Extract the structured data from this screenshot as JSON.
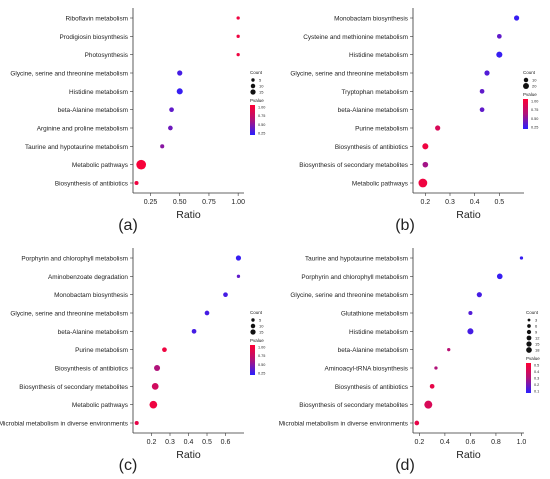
{
  "chart_data": [
    {
      "type": "scatter",
      "panel_label": "(a)",
      "xlabel": "Ratio",
      "xlim": [
        0.1,
        1.05
      ],
      "xticks": [
        "0.25",
        "0.50",
        "0.75",
        "1.00"
      ],
      "xtick_values": [
        0.25,
        0.5,
        0.75,
        1.0
      ],
      "categories": [
        "Riboflavin metabolism",
        "Prodigiosin biosynthesis",
        "Photosynthesis",
        "Glycine, serine and threonine metabolism",
        "Histidine metabolism",
        "beta-Alanine metabolism",
        "Arginine and proline metabolism",
        "Taurine and hypotaurine metabolism",
        "Metabolic pathways",
        "Biosynthesis of antibiotics"
      ],
      "ratio": [
        1.0,
        1.0,
        1.0,
        0.5,
        0.5,
        0.43,
        0.42,
        0.35,
        0.17,
        0.13
      ],
      "count": [
        1,
        1,
        1,
        4,
        6,
        3,
        3,
        2,
        19,
        2
      ],
      "pvalue": [
        0.9,
        0.9,
        0.9,
        0.1,
        0.05,
        0.2,
        0.25,
        0.35,
        0.95,
        0.9
      ],
      "legend": {
        "count_title": "Count",
        "count_levels": [
          5,
          10,
          15
        ],
        "pvalue_title": "Pvalue",
        "pvalue_ticks": [
          "1.00",
          "0.75",
          "0.50",
          "0.25"
        ]
      }
    },
    {
      "type": "scatter",
      "panel_label": "(b)",
      "xlabel": "Ratio",
      "xlim": [
        0.15,
        0.6
      ],
      "xticks": [
        "0.2",
        "0.3",
        "0.4",
        "0.5"
      ],
      "xtick_values": [
        0.2,
        0.3,
        0.4,
        0.5
      ],
      "categories": [
        "Monobactam biosynthesis",
        "Cysteine and methionine metabolism",
        "Histidine metabolism",
        "Glycine, serine and threonine metabolism",
        "Tryptophan metabolism",
        "beta-Alanine metabolism",
        "Purine metabolism",
        "Biosynthesis of antibiotics",
        "Biosynthesis of secondary metabolites",
        "Metabolic pathways"
      ],
      "ratio": [
        0.57,
        0.5,
        0.5,
        0.45,
        0.43,
        0.43,
        0.25,
        0.2,
        0.2,
        0.19
      ],
      "count": [
        4,
        3,
        6,
        4,
        3,
        3,
        4,
        6,
        5,
        15
      ],
      "pvalue": [
        0.05,
        0.2,
        0.05,
        0.15,
        0.2,
        0.2,
        0.75,
        0.9,
        0.45,
        0.9
      ],
      "legend": {
        "count_title": "Count",
        "count_levels": [
          10,
          20
        ],
        "pvalue_title": "Pvalue",
        "pvalue_ticks": [
          "1.00",
          "0.75",
          "0.50",
          "0.25"
        ]
      }
    },
    {
      "type": "scatter",
      "panel_label": "(c)",
      "xlabel": "Ratio",
      "xlim": [
        0.1,
        0.7
      ],
      "xticks": [
        "0.2",
        "0.3",
        "0.4",
        "0.5",
        "0.6"
      ],
      "xtick_values": [
        0.2,
        0.3,
        0.4,
        0.5,
        0.6
      ],
      "categories": [
        "Porphyrin and chlorophyll metabolism",
        "Aminobenzoate degradation",
        "Monobactam biosynthesis",
        "Glycine, serine and threonine metabolism",
        "beta-Alanine metabolism",
        "Purine metabolism",
        "Biosynthesis of antibiotics",
        "Biosynthesis of secondary metabolites",
        "Metabolic pathways",
        "Microbial metabolism in diverse environments"
      ],
      "ratio": [
        0.67,
        0.67,
        0.6,
        0.5,
        0.43,
        0.27,
        0.23,
        0.22,
        0.21,
        0.12
      ],
      "count": [
        4,
        1,
        3,
        3,
        3,
        3,
        6,
        8,
        11,
        2
      ],
      "pvalue": [
        0.05,
        0.2,
        0.1,
        0.1,
        0.1,
        0.9,
        0.5,
        0.7,
        0.9,
        0.85
      ],
      "legend": {
        "count_title": "Count",
        "count_levels": [
          5,
          10,
          15
        ],
        "pvalue_title": "Pvalue",
        "pvalue_ticks": [
          "1.00",
          "0.75",
          "0.50",
          "0.25"
        ]
      }
    },
    {
      "type": "scatter",
      "panel_label": "(d)",
      "xlabel": "Ratio",
      "xlim": [
        0.15,
        1.02
      ],
      "xticks": [
        "0.2",
        "0.4",
        "0.6",
        "0.8",
        "1.0"
      ],
      "xtick_values": [
        0.2,
        0.4,
        0.6,
        0.8,
        1.0
      ],
      "categories": [
        "Taurine and hypotaurine metabolism",
        "Porphyrin and chlorophyll metabolism",
        "Glycine, serine and threonine metabolism",
        "Glutathione metabolism",
        "Histidine metabolism",
        "beta-Alanine metabolism",
        "Aminoacyl-tRNA biosynthesis",
        "Biosynthesis of antibiotics",
        "Biosynthesis of secondary metabolites",
        "Microbial metabolism in diverse environments"
      ],
      "ratio": [
        1.0,
        0.83,
        0.67,
        0.6,
        0.6,
        0.43,
        0.33,
        0.3,
        0.27,
        0.18
      ],
      "count": [
        1,
        5,
        4,
        2,
        6,
        1,
        1,
        3,
        12,
        3
      ],
      "pvalue": [
        0.05,
        0.05,
        0.1,
        0.15,
        0.1,
        0.55,
        0.5,
        0.85,
        0.75,
        0.85
      ],
      "legend": {
        "count_title": "Count",
        "count_levels": [
          3,
          6,
          9,
          12,
          15,
          18
        ],
        "pvalue_title": "Pvalue",
        "pvalue_ticks": [
          "0.5",
          "0.4",
          "0.3",
          "0.2",
          "0.1"
        ]
      }
    }
  ]
}
